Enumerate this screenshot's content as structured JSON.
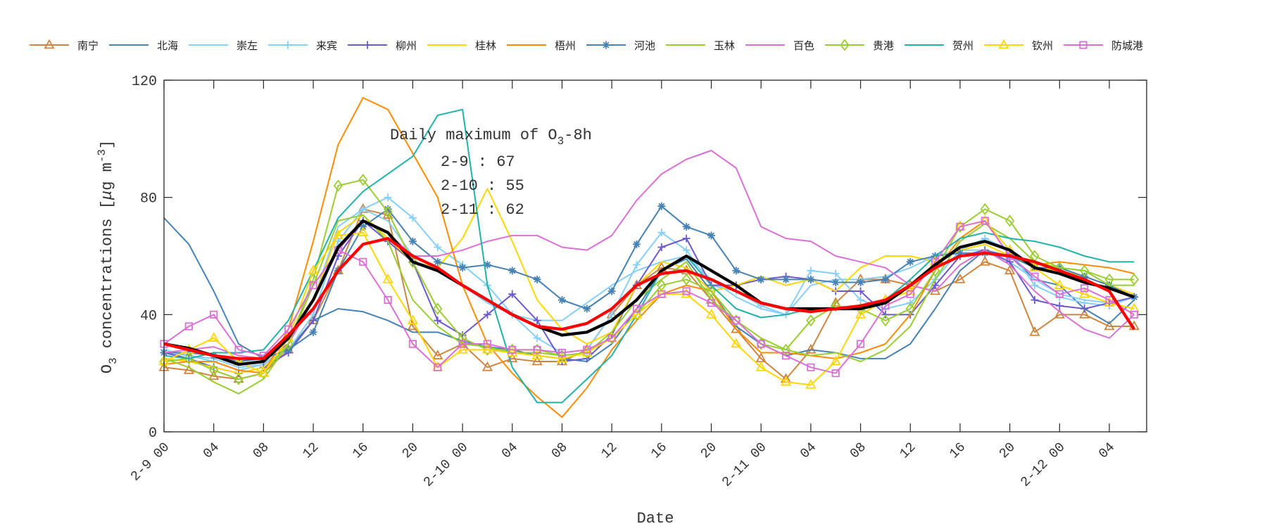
{
  "chart_data": {
    "type": "line",
    "title": "",
    "xlabel": "Date",
    "ylabel_parts": [
      {
        "t": "O",
        "s": ""
      },
      {
        "t": "3",
        "s": "sub"
      },
      {
        "t": " concentrations [",
        "s": ""
      },
      {
        "t": "μ",
        "s": ""
      },
      {
        "t": "g m",
        "s": ""
      },
      {
        "t": "-3",
        "s": "sup"
      },
      {
        "t": "]",
        "s": ""
      }
    ],
    "xlim_hours": [
      0,
      79
    ],
    "ylim": [
      0,
      120
    ],
    "yticks": [
      0,
      40,
      80,
      120
    ],
    "xtick_hours": [
      0,
      4,
      8,
      12,
      16,
      20,
      24,
      28,
      32,
      36,
      40,
      44,
      48,
      52,
      56,
      60,
      64,
      68,
      72,
      76
    ],
    "xtick_labels": [
      "2-9 00",
      "04",
      "08",
      "12",
      "16",
      "20",
      "2-10 00",
      "04",
      "08",
      "12",
      "16",
      "20",
      "2-11 00",
      "04",
      "08",
      "12",
      "16",
      "20",
      "2-12 00",
      "04"
    ],
    "x_hours": [
      0,
      2,
      4,
      6,
      8,
      10,
      12,
      14,
      16,
      18,
      20,
      22,
      24,
      26,
      28,
      30,
      32,
      34,
      36,
      38,
      40,
      42,
      44,
      46,
      48,
      50,
      52,
      54,
      56,
      58,
      60,
      62,
      64,
      66,
      68,
      70,
      72,
      74,
      76,
      78
    ],
    "grid": false,
    "legend_position": "top",
    "annotation": {
      "title_parts": [
        {
          "t": "Daily maximum of O",
          "s": ""
        },
        {
          "t": "3",
          "s": "sub"
        },
        {
          "t": "-8h",
          "s": ""
        }
      ],
      "lines": [
        "2-9 : 67",
        "2-10 : 55",
        "2-11 : 62"
      ]
    },
    "series": [
      {
        "name": "南宁",
        "color": "#CD853F",
        "marker": "triangle",
        "values": [
          22,
          21,
          19,
          18,
          20,
          28,
          38,
          55,
          76,
          74,
          36,
          26,
          30,
          22,
          25,
          24,
          24,
          28,
          40,
          50,
          56,
          55,
          45,
          35,
          25,
          18,
          28,
          44,
          52,
          52,
          50,
          48,
          52,
          58,
          55,
          34,
          40,
          40,
          36,
          36
        ]
      },
      {
        "name": "北海",
        "color": "#4682B4",
        "marker": "none",
        "values": [
          73,
          64,
          48,
          30,
          25,
          28,
          38,
          42,
          41,
          38,
          34,
          34,
          31,
          29,
          28,
          26,
          25,
          24,
          30,
          42,
          55,
          59,
          48,
          36,
          30,
          26,
          28,
          27,
          25,
          25,
          30,
          42,
          55,
          62,
          60,
          52,
          50,
          42,
          37,
          45
        ]
      },
      {
        "name": "崇左",
        "color": "#87CEFA",
        "marker": "none",
        "values": [
          27,
          26,
          25,
          22,
          23,
          30,
          45,
          70,
          76,
          72,
          60,
          56,
          50,
          44,
          40,
          38,
          38,
          44,
          50,
          55,
          58,
          60,
          52,
          46,
          42,
          40,
          50,
          52,
          52,
          53,
          56,
          60,
          62,
          62,
          58,
          52,
          47,
          45,
          44,
          42
        ]
      },
      {
        "name": "来宾",
        "color": "#87CEFA",
        "marker": "plus",
        "values": [
          28,
          26,
          24,
          21,
          23,
          28,
          40,
          65,
          76,
          80,
          73,
          63,
          57,
          50,
          40,
          32,
          27,
          28,
          40,
          57,
          68,
          62,
          50,
          48,
          43,
          40,
          55,
          54,
          45,
          42,
          44,
          52,
          62,
          66,
          62,
          50,
          46,
          44,
          43,
          46
        ]
      },
      {
        "name": "柳州",
        "color": "#6A5ACD",
        "marker": "plus",
        "values": [
          27,
          25,
          22,
          20,
          22,
          27,
          38,
          60,
          72,
          65,
          58,
          38,
          33,
          40,
          47,
          38,
          24,
          25,
          33,
          50,
          63,
          66,
          50,
          50,
          52,
          53,
          52,
          48,
          48,
          40,
          40,
          50,
          60,
          62,
          58,
          45,
          43,
          42,
          44,
          46
        ]
      },
      {
        "name": "桂林",
        "color": "#FFD700",
        "marker": "none",
        "values": [
          25,
          24,
          22,
          20,
          22,
          30,
          45,
          68,
          74,
          66,
          58,
          56,
          66,
          83,
          65,
          45,
          35,
          30,
          34,
          50,
          58,
          56,
          48,
          50,
          53,
          50,
          52,
          48,
          56,
          60,
          60,
          58,
          62,
          64,
          60,
          56,
          55,
          53,
          50,
          47
        ]
      },
      {
        "name": "梧州",
        "color": "#FF8C00",
        "marker": "none",
        "values": [
          23,
          24,
          24,
          21,
          20,
          35,
          65,
          98,
          114,
          110,
          95,
          80,
          50,
          30,
          20,
          12,
          5,
          15,
          28,
          38,
          47,
          50,
          48,
          35,
          27,
          27,
          26,
          25,
          27,
          30,
          40,
          55,
          66,
          72,
          60,
          57,
          58,
          57,
          56,
          54
        ]
      },
      {
        "name": "河池",
        "color": "#4682B4",
        "marker": "asterisk",
        "values": [
          27,
          27,
          26,
          24,
          25,
          28,
          34,
          55,
          70,
          76,
          65,
          58,
          56,
          57,
          55,
          52,
          45,
          42,
          48,
          64,
          77,
          70,
          67,
          55,
          52,
          52,
          52,
          51,
          51,
          52,
          58,
          60,
          61,
          61,
          60,
          56,
          56,
          53,
          50,
          46
        ]
      },
      {
        "name": "玉林",
        "color": "#9ACD32",
        "marker": "none",
        "values": [
          25,
          22,
          17,
          13,
          18,
          30,
          50,
          72,
          74,
          65,
          45,
          36,
          30,
          29,
          27,
          27,
          26,
          27,
          34,
          45,
          52,
          58,
          45,
          38,
          32,
          28,
          26,
          27,
          24,
          28,
          36,
          52,
          65,
          71,
          66,
          58,
          56,
          55,
          50,
          50
        ]
      },
      {
        "name": "百色",
        "color": "#DA70D6",
        "marker": "none",
        "values": [
          27,
          28,
          29,
          26,
          25,
          30,
          45,
          62,
          72,
          68,
          60,
          60,
          62,
          65,
          67,
          67,
          63,
          62,
          67,
          79,
          88,
          93,
          96,
          90,
          70,
          66,
          65,
          60,
          58,
          56,
          50,
          48,
          57,
          62,
          57,
          48,
          41,
          35,
          32,
          40
        ]
      },
      {
        "name": "贵港",
        "color": "#9ACD32",
        "marker": "diamond",
        "values": [
          24,
          25,
          21,
          18,
          20,
          30,
          52,
          84,
          86,
          75,
          58,
          42,
          32,
          28,
          28,
          28,
          26,
          27,
          32,
          40,
          50,
          52,
          48,
          38,
          30,
          28,
          38,
          43,
          42,
          38,
          42,
          55,
          70,
          76,
          72,
          60,
          56,
          55,
          52,
          52
        ]
      },
      {
        "name": "贺州",
        "color": "#20B2AA",
        "marker": "none",
        "values": [
          26,
          25,
          27,
          27,
          28,
          38,
          55,
          73,
          82,
          88,
          94,
          108,
          110,
          50,
          22,
          10,
          10,
          18,
          26,
          40,
          55,
          60,
          50,
          42,
          39,
          40,
          42,
          42,
          42,
          45,
          52,
          60,
          66,
          68,
          66,
          65,
          63,
          60,
          58,
          58
        ]
      },
      {
        "name": "钦州",
        "color": "#FFD700",
        "marker": "triangle",
        "values": [
          24,
          28,
          32,
          24,
          20,
          32,
          55,
          67,
          68,
          52,
          38,
          22,
          28,
          28,
          27,
          26,
          25,
          27,
          32,
          40,
          47,
          47,
          40,
          30,
          22,
          17,
          16,
          24,
          40,
          45,
          48,
          58,
          70,
          72,
          62,
          56,
          50,
          47,
          44,
          42
        ]
      },
      {
        "name": "防城港",
        "color": "#DA70D6",
        "marker": "square",
        "values": [
          30,
          36,
          40,
          28,
          26,
          35,
          50,
          62,
          58,
          45,
          30,
          22,
          30,
          30,
          28,
          28,
          27,
          28,
          32,
          42,
          47,
          48,
          44,
          38,
          30,
          26,
          22,
          20,
          30,
          43,
          47,
          58,
          70,
          72,
          60,
          53,
          47,
          49,
          45,
          40
        ]
      },
      {
        "color": "#000000",
        "marker": "none",
        "bold": true,
        "values": [
          30,
          28.5,
          26,
          23,
          24,
          32,
          45,
          63,
          72,
          68,
          58,
          55,
          50,
          45,
          40,
          36,
          33,
          34,
          38,
          45,
          55,
          60,
          55,
          50,
          44,
          42,
          42,
          42,
          42,
          44,
          50,
          57,
          63,
          65,
          62,
          56,
          54,
          51,
          49,
          46
        ]
      },
      {
        "color": "#FF0000",
        "marker": "none",
        "bold": true,
        "values": [
          30,
          28,
          26,
          25,
          25,
          33,
          42,
          55,
          64,
          66,
          60,
          56,
          50,
          45,
          40,
          36,
          35,
          37,
          42,
          50,
          54,
          55,
          52,
          48,
          44,
          42,
          41,
          42,
          43,
          45,
          50,
          56,
          60,
          61,
          60,
          58,
          55,
          52,
          48,
          35
        ]
      }
    ]
  }
}
